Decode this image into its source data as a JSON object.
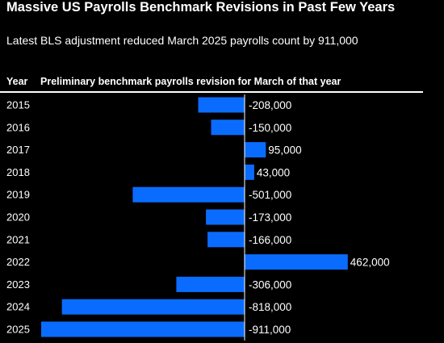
{
  "header": {
    "title": "Massive US Payrolls Benchmark Revisions in Past Few Years",
    "subtitle": "Latest BLS adjustment reduced March 2025 payrolls count by 911,000",
    "col_year": "Year",
    "col_value": "Preliminary benchmark payrolls revision for March of that year"
  },
  "colors": {
    "background": "#000000",
    "bar": "#0a6cff",
    "text": "#ffffff",
    "axis": "#ffffff"
  },
  "chart_data": {
    "type": "bar",
    "orientation": "horizontal",
    "title": "Massive US Payrolls Benchmark Revisions in Past Few Years",
    "subtitle": "Latest BLS adjustment reduced March 2025 payrolls count by 911,000",
    "categories": [
      "2015",
      "2016",
      "2017",
      "2018",
      "2019",
      "2020",
      "2021",
      "2022",
      "2023",
      "2024",
      "2025"
    ],
    "values": [
      -208000,
      -150000,
      95000,
      43000,
      -501000,
      -173000,
      -166000,
      462000,
      -306000,
      -818000,
      -911000
    ],
    "labels": [
      "-208,000",
      "-150,000",
      "95,000",
      "43,000",
      "-501,000",
      "-173,000",
      "-166,000",
      "462,000",
      "-306,000",
      "-818,000",
      "-911,000"
    ],
    "xlim": [
      -911000,
      462000
    ],
    "grid": false,
    "legend": "none"
  }
}
